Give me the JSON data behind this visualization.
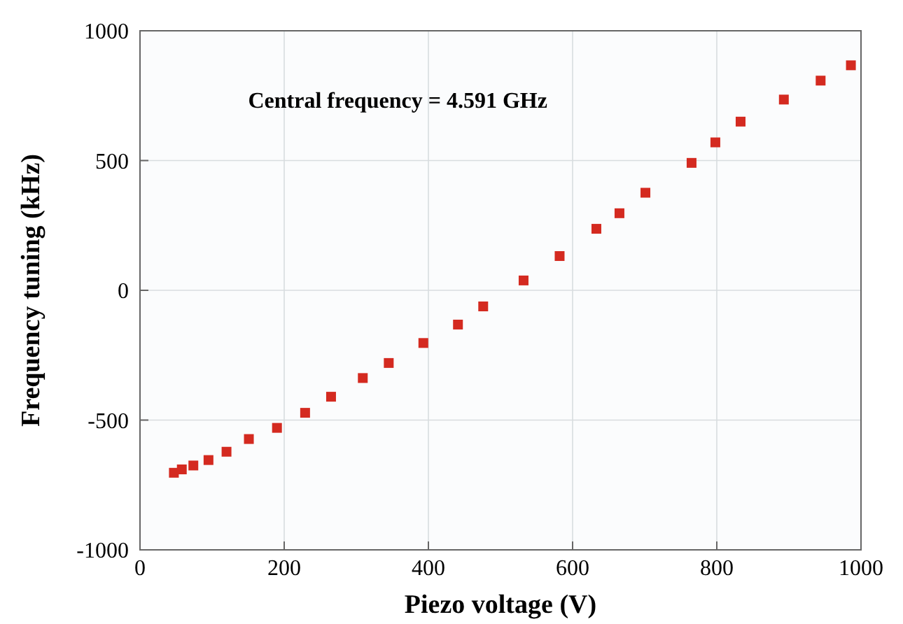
{
  "chart_data": {
    "type": "scatter",
    "xlabel": "Piezo voltage (V)",
    "ylabel": "Frequency tuning (kHz)",
    "annotations": [
      "Central frequency = 4.591 GHz"
    ],
    "xlim": [
      0,
      1000
    ],
    "xticks": [
      0,
      200,
      400,
      600,
      800,
      1000
    ],
    "ylim": [
      -1000,
      1000
    ],
    "yticks": [
      -1000,
      -500,
      0,
      500,
      1000
    ],
    "grid": true,
    "marker": "square",
    "series": [
      {
        "color": "#d42a20",
        "x": [
          47,
          58,
          74,
          95,
          120,
          151,
          190,
          229,
          265,
          309,
          345,
          393,
          441,
          476,
          532,
          582,
          633,
          665,
          701,
          765,
          798,
          833,
          893,
          944,
          986
        ],
        "values": [
          -703,
          -690,
          -675,
          -654,
          -622,
          -573,
          -530,
          -472,
          -410,
          -338,
          -280,
          -203,
          -132,
          -62,
          38,
          132,
          237,
          297,
          376,
          491,
          570,
          650,
          735,
          808,
          867
        ]
      }
    ]
  }
}
